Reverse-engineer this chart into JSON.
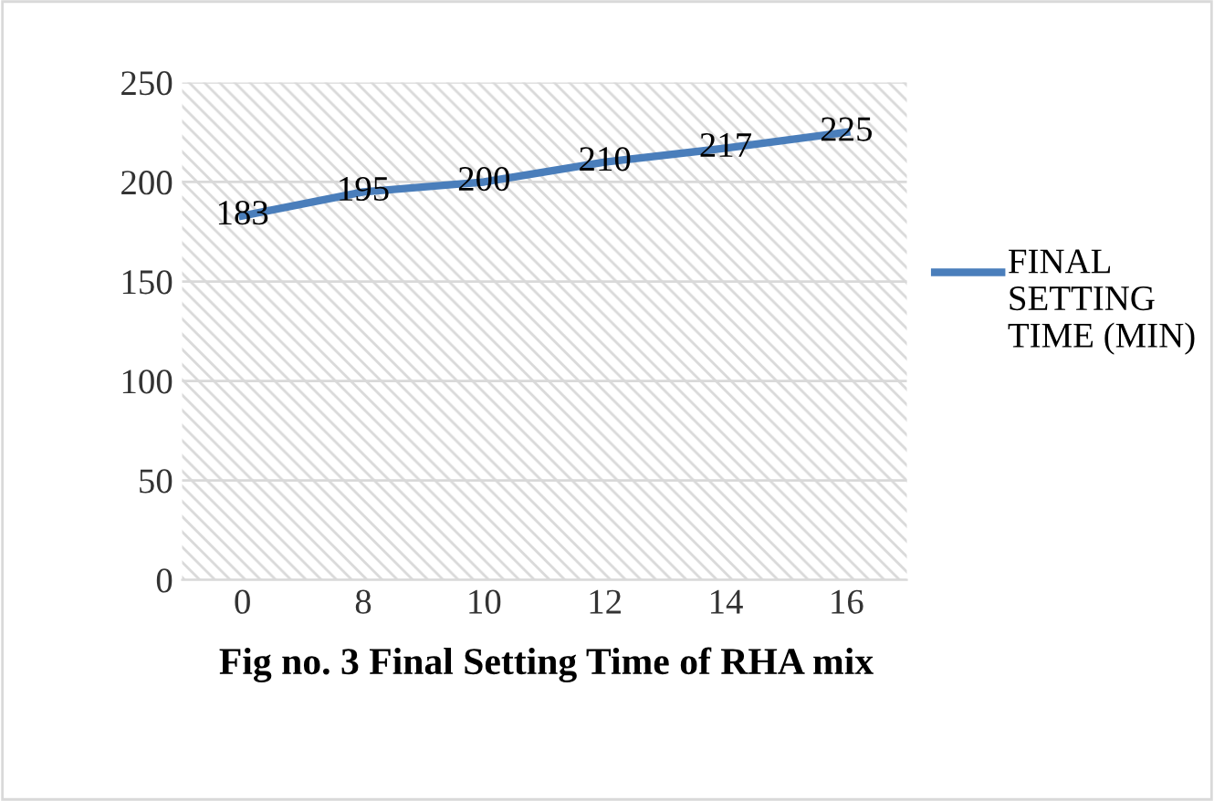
{
  "chart_data": {
    "type": "line",
    "title": "Fig no. 3 Final Setting Time of RHA mix",
    "categories": [
      "0",
      "8",
      "10",
      "12",
      "14",
      "16"
    ],
    "series": [
      {
        "name": "FINAL SETTING TIME (MIN)",
        "color": "#4a7ebb",
        "values": [
          183,
          195,
          200,
          210,
          217,
          225
        ]
      }
    ],
    "ylim": [
      0,
      250
    ],
    "yticks": [
      0,
      50,
      100,
      150,
      200,
      250
    ],
    "grid": "y",
    "legend": "right",
    "data_labels": true,
    "marker": "none",
    "line_style": "solid"
  }
}
